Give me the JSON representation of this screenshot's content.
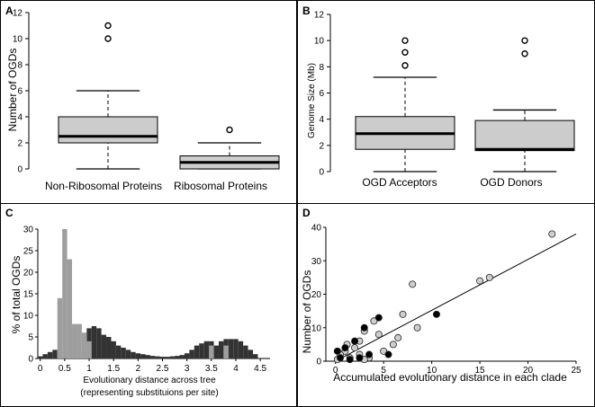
{
  "chart_data": [
    {
      "panel": "A",
      "type": "boxplot",
      "ylabel": "Number of OGDs",
      "ylim": [
        0,
        12
      ],
      "yticks": [
        "0",
        "2",
        "4",
        "6",
        "8",
        "10",
        "12"
      ],
      "categories": [
        "Non-Ribosomal Proteins",
        "Ribosomal Proteins"
      ],
      "boxes": [
        {
          "min": 0,
          "q1": 2,
          "median": 2.5,
          "q3": 4,
          "max": 6,
          "outliers": [
            10,
            11
          ]
        },
        {
          "min": 0,
          "q1": 0,
          "median": 0.5,
          "q3": 1,
          "max": 2,
          "outliers": [
            3
          ]
        }
      ]
    },
    {
      "panel": "B",
      "type": "boxplot",
      "ylabel": "Genome Size (Mb)",
      "ylim": [
        0,
        12
      ],
      "yticks": [
        "0",
        "2",
        "4",
        "6",
        "8",
        "10",
        "12"
      ],
      "categories": [
        "OGD Acceptors",
        "OGD Donors"
      ],
      "boxes": [
        {
          "min": 0,
          "q1": 1.7,
          "median": 2.9,
          "q3": 4.2,
          "max": 7.2,
          "outliers": [
            8.1,
            9.1,
            10
          ]
        },
        {
          "min": 0,
          "q1": 1.6,
          "median": 1.7,
          "q3": 3.9,
          "max": 4.7,
          "outliers": [
            9,
            10
          ]
        }
      ]
    },
    {
      "panel": "C",
      "type": "bar",
      "ylabel": "% of total OGDs",
      "xlabel": "Evolutionary distance across tree",
      "xlabel2": "(representing substituions per site)",
      "ylim": [
        0,
        30
      ],
      "xlim": [
        -0.05,
        4.7
      ],
      "yticks": [
        "0",
        "5",
        "10",
        "15",
        "20",
        "25",
        "30"
      ],
      "xticks": [
        "0",
        "0.5",
        "1",
        "1.5",
        "2",
        "2.5",
        "3",
        "3.5",
        "4",
        "4.5"
      ],
      "bin_width": 0.1,
      "series": [
        {
          "name": "dark",
          "color": "#333333",
          "x": [
            -0.05,
            0.05,
            0.15,
            0.25,
            0.95,
            1.05,
            1.15,
            1.25,
            1.35,
            1.45,
            1.55,
            1.65,
            1.75,
            1.85,
            1.95,
            2.05,
            2.15,
            2.25,
            2.35,
            2.45,
            2.55,
            2.65,
            2.75,
            2.85,
            2.95,
            3.05,
            3.15,
            3.25,
            3.35,
            3.45,
            3.55,
            3.65,
            3.75,
            3.85,
            3.95,
            4.05,
            4.15,
            4.25,
            4.35
          ],
          "values": [
            0.5,
            1,
            1.5,
            2,
            7,
            7.5,
            7,
            5.5,
            5,
            4,
            3,
            2.5,
            2,
            1.5,
            1.2,
            1,
            0.8,
            0.6,
            0.5,
            0.4,
            0.4,
            0.5,
            0.6,
            0.8,
            1.2,
            2,
            3,
            3.5,
            4,
            4,
            3,
            4,
            4.5,
            4.5,
            4.5,
            4,
            3,
            2,
            1
          ]
        },
        {
          "name": "light",
          "color": "#9e9e9e",
          "x": [
            0.35,
            0.45,
            0.55,
            0.65,
            0.75,
            0.85,
            0.95,
            3.45,
            3.75
          ],
          "values": [
            14,
            30,
            23,
            8,
            8,
            6,
            4,
            3,
            3
          ]
        }
      ]
    },
    {
      "panel": "D",
      "type": "scatter",
      "ylabel": "Number of OGDs",
      "xlabel": "Accumulated evolutionary distance in each clade",
      "xlim": [
        -1,
        25
      ],
      "ylim": [
        0,
        40
      ],
      "xticks": [
        "0",
        "5",
        "10",
        "15",
        "20",
        "25"
      ],
      "yticks": [
        "0",
        "10",
        "20",
        "30",
        "40"
      ],
      "trendline": {
        "x": [
          0,
          25
        ],
        "y": [
          0,
          38
        ]
      },
      "series": [
        {
          "name": "light",
          "color": "#cfcfcf",
          "points": [
            [
              22.5,
              38
            ],
            [
              16,
              25
            ],
            [
              15,
              24
            ],
            [
              8,
              23
            ],
            [
              7,
              14
            ],
            [
              8.5,
              10
            ],
            [
              4,
              12
            ],
            [
              4.5,
              8
            ],
            [
              3,
              9
            ],
            [
              6.5,
              7
            ],
            [
              6,
              5
            ],
            [
              5,
              3
            ],
            [
              2,
              4
            ],
            [
              1,
              3
            ],
            [
              0.5,
              2
            ],
            [
              1.5,
              1
            ],
            [
              2.5,
              2
            ],
            [
              3.5,
              1
            ],
            [
              0.2,
              0.5
            ],
            [
              3,
              0.5
            ],
            [
              1.2,
              5
            ],
            [
              2.5,
              6
            ]
          ]
        },
        {
          "name": "dark",
          "color": "#000000",
          "points": [
            [
              10.5,
              14
            ],
            [
              4.5,
              13
            ],
            [
              3,
              10
            ],
            [
              5.5,
              2
            ],
            [
              3.5,
              2
            ],
            [
              2,
              6
            ],
            [
              1,
              4
            ],
            [
              0.5,
              1
            ],
            [
              2.5,
              1
            ],
            [
              1.5,
              0.5
            ],
            [
              0.2,
              3
            ]
          ]
        }
      ]
    }
  ]
}
